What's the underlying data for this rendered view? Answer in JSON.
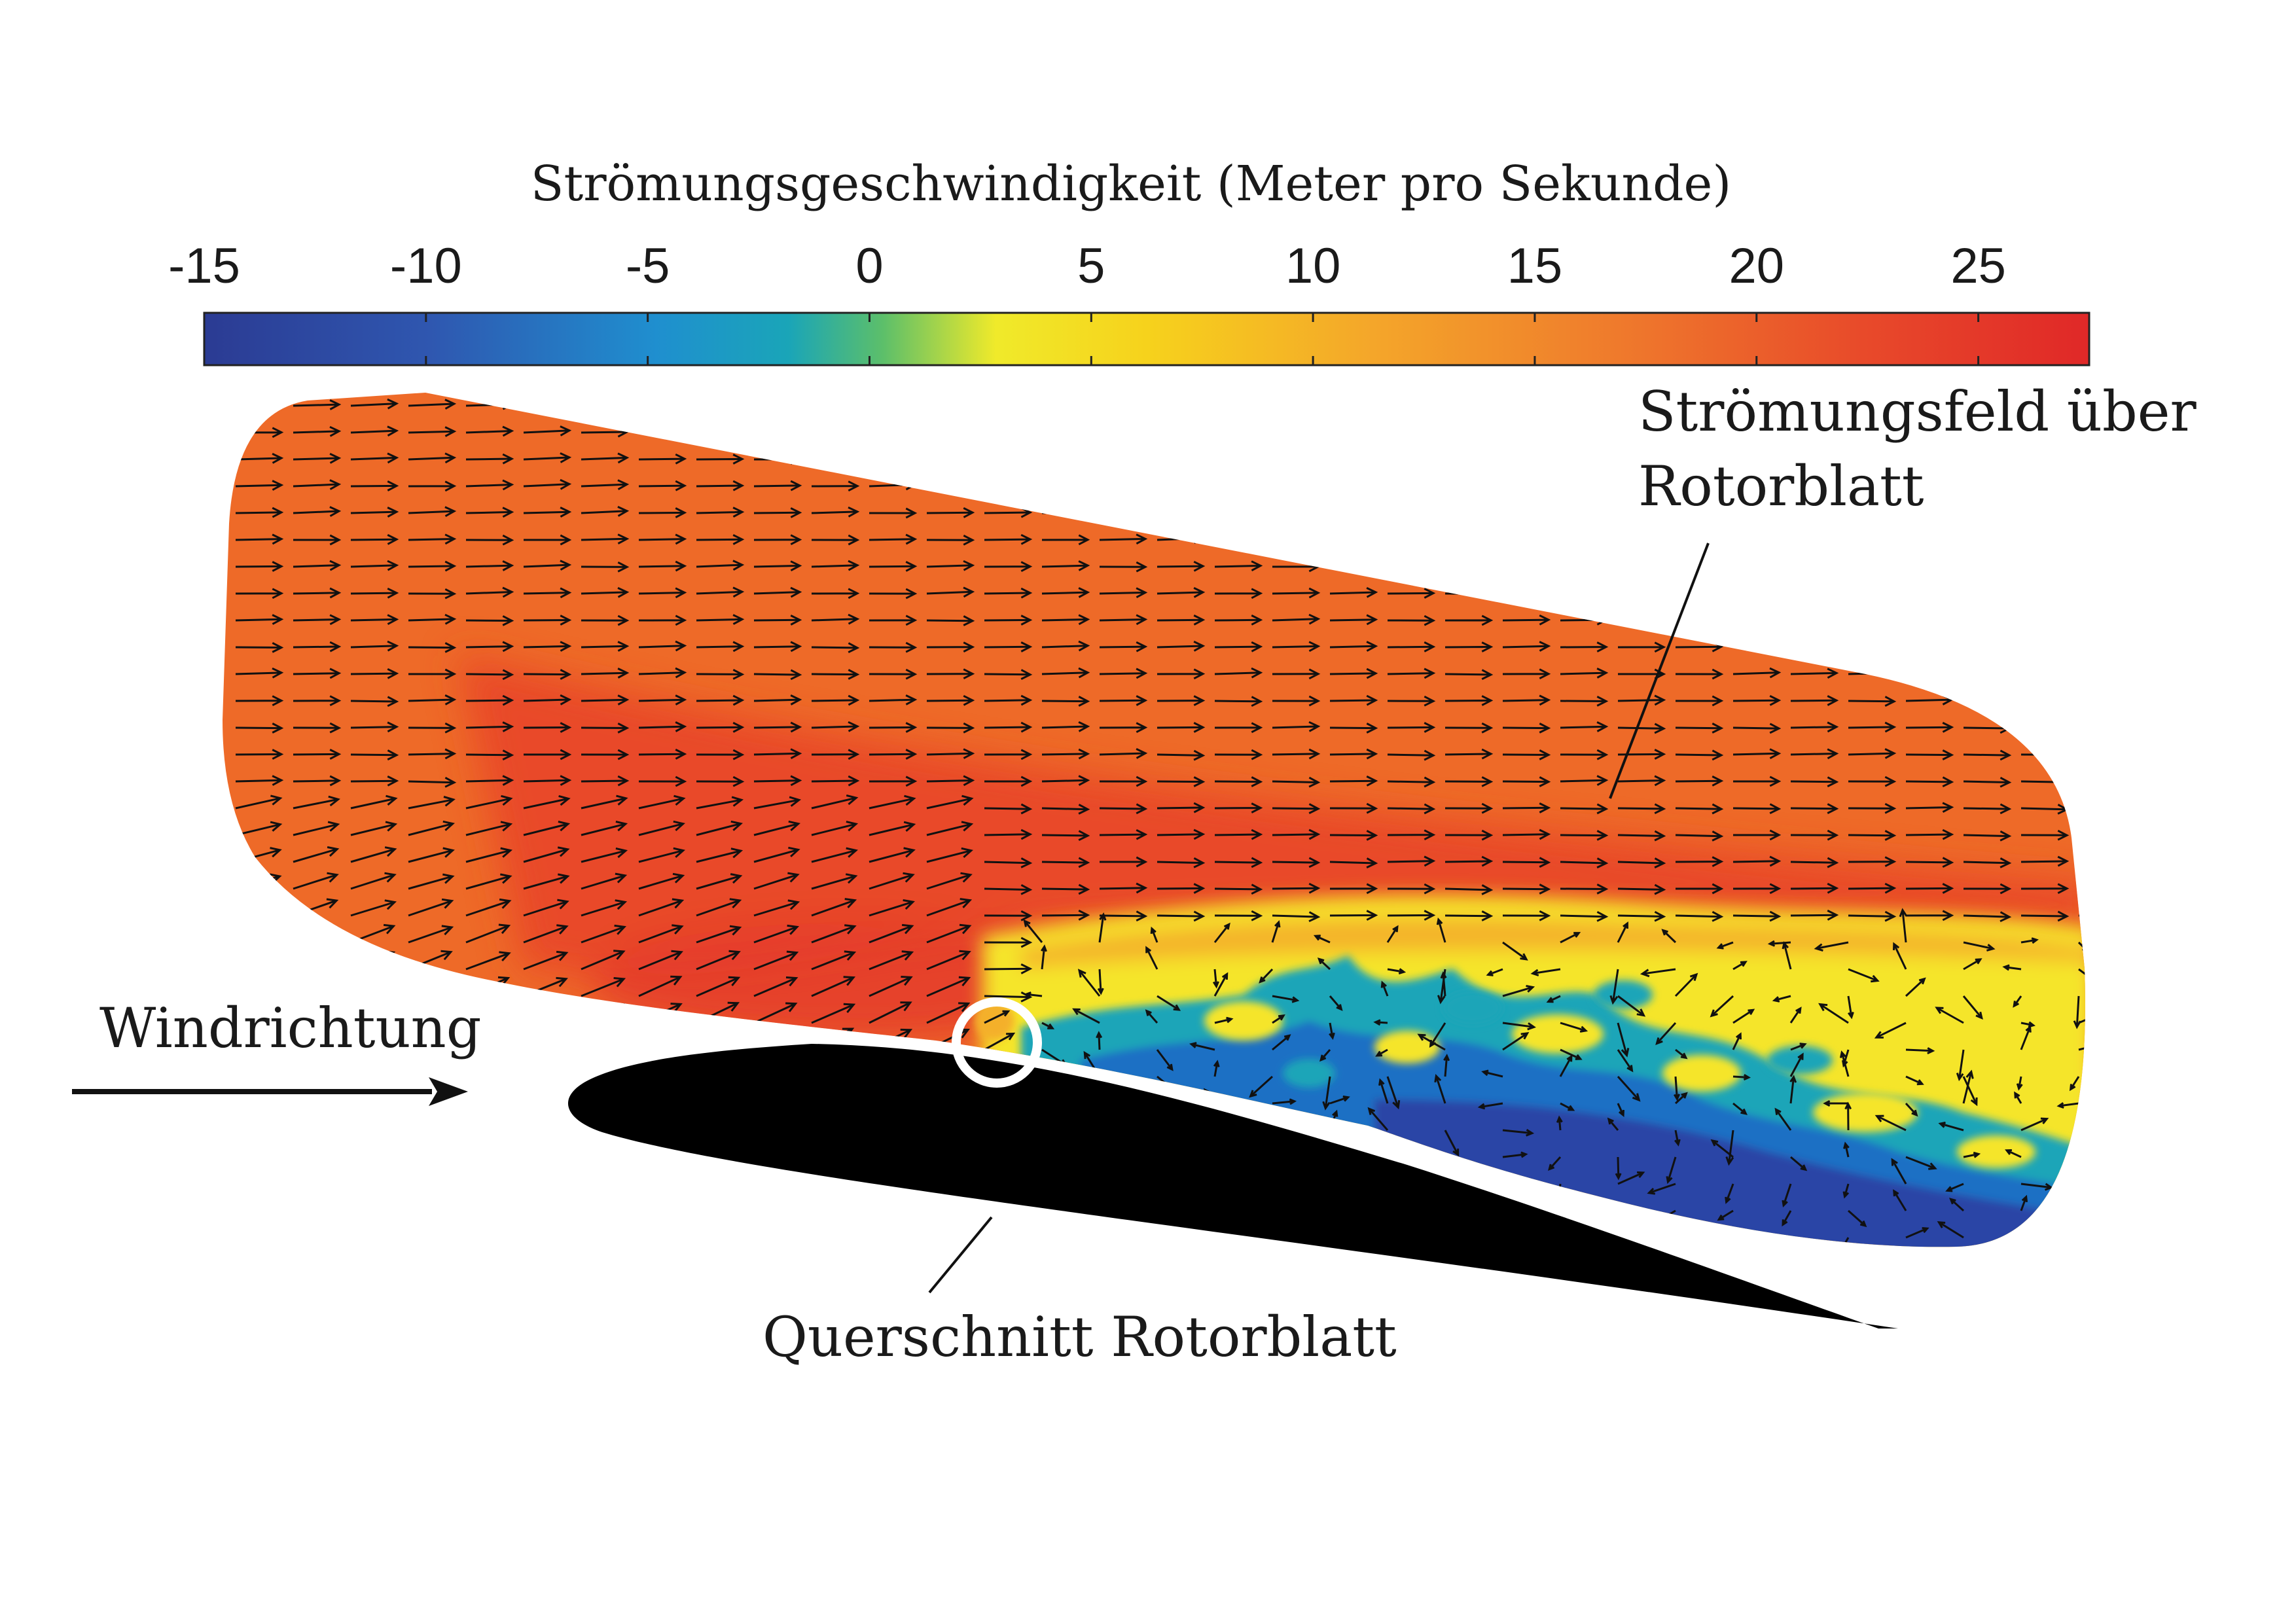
{
  "colorbar": {
    "title": "Strömungsgeschwindigkeit (Meter pro Sekunde)",
    "ticks": [
      "-15",
      "-10",
      "-5",
      "0",
      "5",
      "10",
      "15",
      "20",
      "25"
    ],
    "tick_values": [
      -15,
      -10,
      -5,
      0,
      5,
      10,
      15,
      20,
      25
    ],
    "range": [
      -15,
      27.5
    ],
    "colormap": [
      "#2b3b93",
      "#2f57b0",
      "#1f8fcf",
      "#1aa5b8",
      "#5cbf6a",
      "#f0ea2a",
      "#f6d21c",
      "#f4a62a",
      "#ef7a2c",
      "#e84a2a",
      "#e02828"
    ]
  },
  "labels": {
    "flow_field_line1": "Strömungsfeld über",
    "flow_field_line2": "Rotorblatt",
    "wind_direction": "Windrichtung",
    "cross_section": "Querschnitt Rotorblatt"
  },
  "colors": {
    "free_stream": "#ee6a28",
    "accelerated": "#e8452a",
    "reverse_flow": "#1f4fb0",
    "transition": "#f5e52c",
    "airfoil": "#000000",
    "highlight_ring": "#ffffff"
  }
}
